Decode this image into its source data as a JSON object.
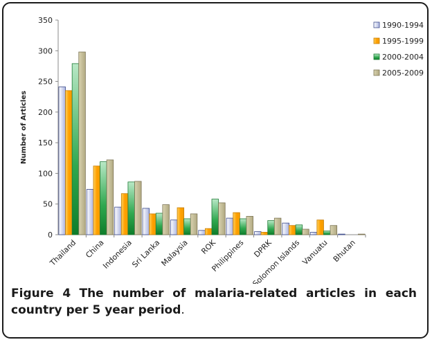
{
  "chart_data": {
    "type": "bar",
    "ylabel": "Number of Articles",
    "ylim": [
      0,
      350
    ],
    "yticks": [
      0,
      50,
      100,
      150,
      200,
      250,
      300,
      350
    ],
    "grid": false,
    "legend_position": "top-right",
    "categories": [
      "Thailand",
      "China",
      "Indonesia",
      "Sri Lanka",
      "Malaysia",
      "ROK",
      "Philippines",
      "DPRK",
      "Solomon Islands",
      "Vanuatu",
      "Bhutan"
    ],
    "series": [
      {
        "name": "1990-1994",
        "color": "#c5cdea",
        "values": [
          241,
          74,
          45,
          43,
          24,
          7,
          27,
          5,
          19,
          4,
          1
        ]
      },
      {
        "name": "1995-1999",
        "color": "#ffa800",
        "values": [
          235,
          112,
          67,
          34,
          44,
          10,
          36,
          4,
          15,
          24,
          0
        ]
      },
      {
        "name": "2000-2004",
        "color": "#2fa84f",
        "values": [
          279,
          119,
          86,
          35,
          26,
          58,
          26,
          23,
          16,
          6,
          0
        ]
      },
      {
        "name": "2005-2009",
        "color": "#c4bd97",
        "values": [
          298,
          122,
          87,
          49,
          34,
          52,
          30,
          27,
          9,
          15,
          1
        ]
      }
    ]
  },
  "caption": {
    "label": "Figure 4",
    "text": "The number of malaria-related articles in each country per 5 year period",
    "end": "."
  }
}
